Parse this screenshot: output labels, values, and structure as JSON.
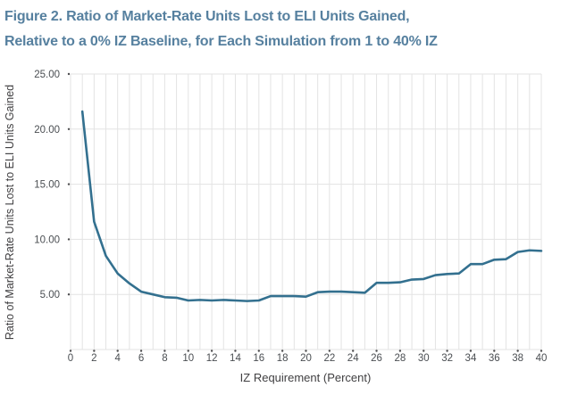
{
  "title_line1": "Figure 2. Ratio of Market-Rate Units Lost to ELI Units Gained,",
  "title_line2": "Relative to a 0% IZ Baseline, for Each Simulation from 1 to 40% IZ",
  "colors": {
    "title": "#56809f",
    "line": "#33708f",
    "grid": "#e3e3e3",
    "axis_text": "#414042",
    "tick_text": "#4a4e52",
    "tick_dot": "#4d4d4f"
  },
  "chart_data": {
    "type": "line",
    "title": "Ratio of Market-Rate Units Lost to ELI Units Gained, Relative to a 0% IZ Baseline, for Each Simulation from 1 to 40% IZ",
    "xlabel": "IZ Requirement (Percent)",
    "ylabel": "Ratio of Market-Rate Units Lost to ELI Units Gained",
    "xlim": [
      0,
      40
    ],
    "ylim": [
      0,
      25
    ],
    "grid": true,
    "legend": false,
    "x": [
      1,
      2,
      3,
      4,
      5,
      6,
      7,
      8,
      9,
      10,
      11,
      12,
      13,
      14,
      15,
      16,
      17,
      18,
      19,
      20,
      21,
      22,
      23,
      24,
      25,
      26,
      27,
      28,
      29,
      30,
      31,
      32,
      33,
      34,
      35,
      36,
      37,
      38,
      39,
      40
    ],
    "values": [
      21.6,
      11.6,
      8.5,
      6.9,
      6.0,
      5.25,
      5.0,
      4.75,
      4.7,
      4.45,
      4.5,
      4.45,
      4.5,
      4.45,
      4.4,
      4.45,
      4.85,
      4.85,
      4.85,
      4.8,
      5.2,
      5.25,
      5.25,
      5.2,
      5.15,
      6.05,
      6.05,
      6.1,
      6.35,
      6.4,
      6.75,
      6.85,
      6.9,
      7.75,
      7.75,
      8.15,
      8.2,
      8.85,
      9.0,
      8.95
    ],
    "x_tick_values": [
      0,
      2,
      4,
      6,
      8,
      10,
      12,
      14,
      16,
      18,
      20,
      22,
      24,
      26,
      28,
      30,
      32,
      34,
      36,
      38,
      40
    ],
    "x_tick_labels": [
      "0",
      "2",
      "4",
      "6",
      "8",
      "10",
      "12",
      "14",
      "16",
      "18",
      "20",
      "22",
      "24",
      "26",
      "28",
      "30",
      "32",
      "34",
      "36",
      "38",
      "40"
    ],
    "y_ticks": [
      {
        "v": 5,
        "label": "5.00"
      },
      {
        "v": 10,
        "label": "10.00"
      },
      {
        "v": 15,
        "label": "15.00"
      },
      {
        "v": 20,
        "label": "20.00"
      },
      {
        "v": 25,
        "label": "25.00"
      }
    ],
    "minor_x_grid_step": 1,
    "horizontal_grid_values": [
      0,
      5,
      10,
      15,
      20,
      25
    ]
  }
}
